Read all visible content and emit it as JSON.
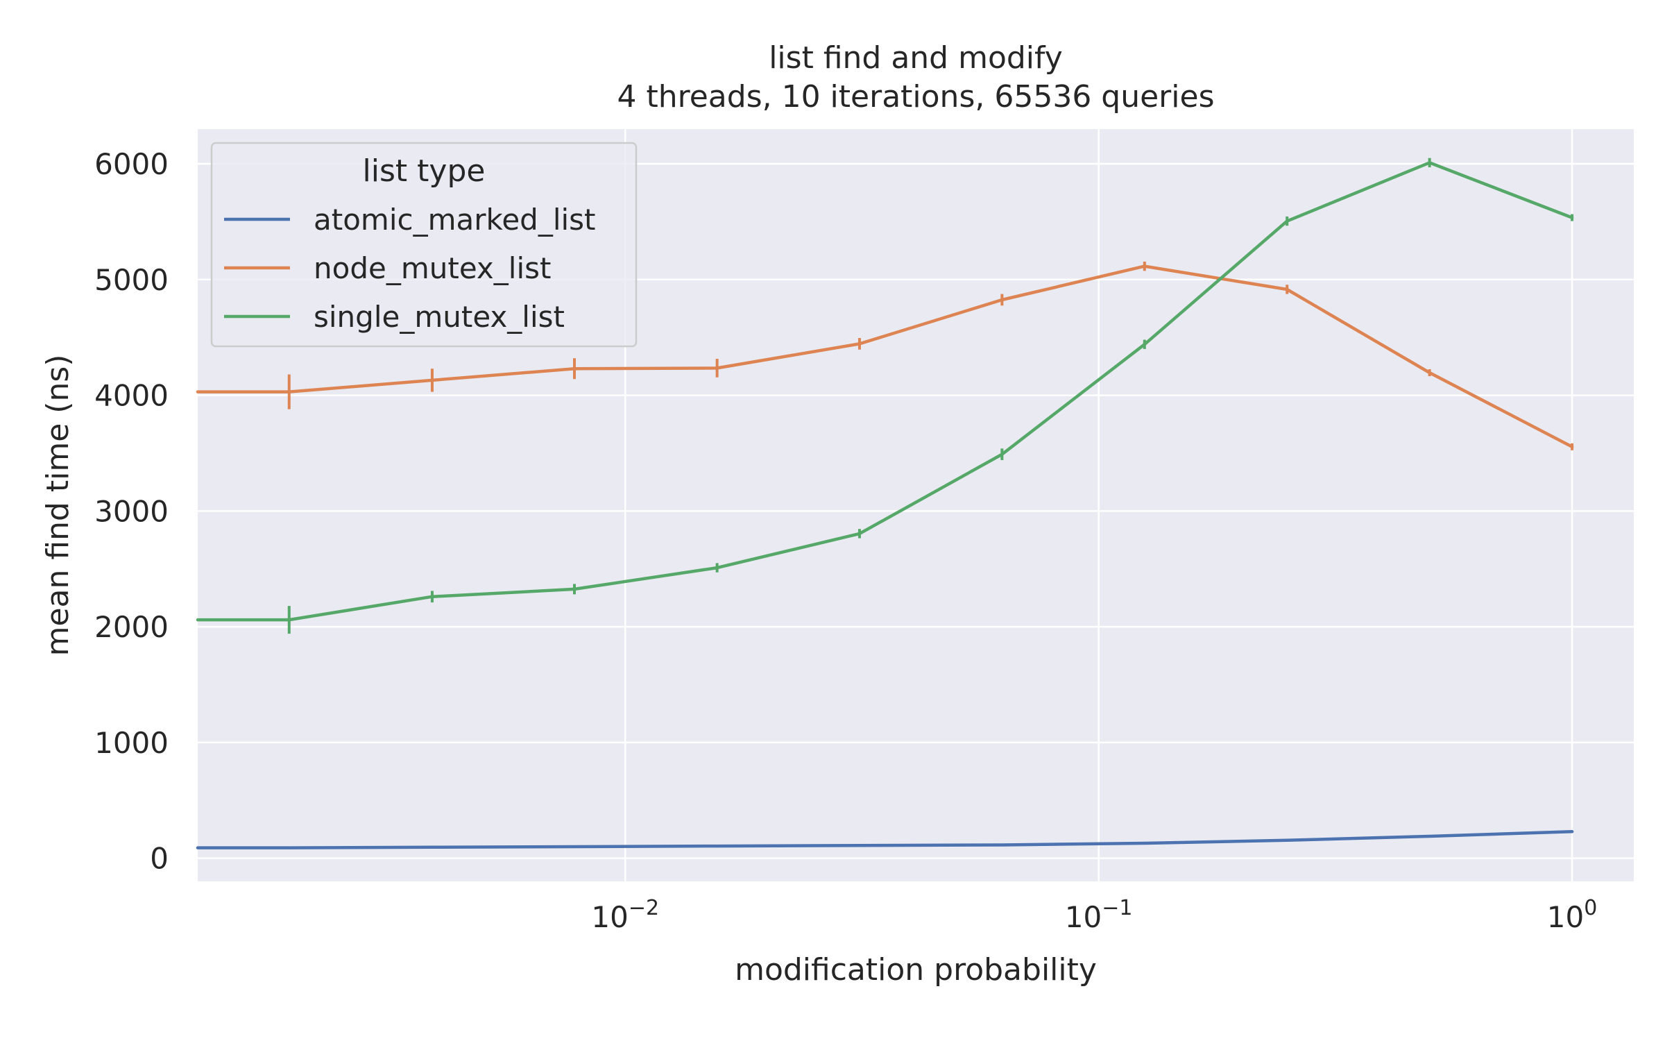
{
  "chart_data": {
    "type": "line",
    "title": "list find and modify",
    "subtitle": "4 threads, 10 iterations, 65536 queries",
    "xlabel": "modification probability",
    "ylabel": "mean find time (ns)",
    "x_scale": "log",
    "xlim": [
      0.00125,
      1.35
    ],
    "ylim": [
      -200,
      6300
    ],
    "grid": true,
    "x_ticks": [
      {
        "value": 0.01,
        "base": "10",
        "exp": "−2"
      },
      {
        "value": 0.1,
        "base": "10",
        "exp": "−1"
      },
      {
        "value": 1,
        "base": "10",
        "exp": "0"
      }
    ],
    "y_ticks": [
      0,
      1000,
      2000,
      3000,
      4000,
      5000,
      6000
    ],
    "legend": {
      "title": "list type",
      "position": "top-left"
    },
    "series": [
      {
        "name": "atomic_marked_list",
        "color": "#4c72b0",
        "x": [
          0.00098,
          0.00195,
          0.00391,
          0.00781,
          0.01563,
          0.03125,
          0.0625,
          0.125,
          0.25,
          0.5,
          1
        ],
        "y": [
          90,
          90,
          95,
          100,
          105,
          110,
          115,
          130,
          155,
          190,
          230
        ],
        "err": [
          5,
          5,
          5,
          5,
          5,
          5,
          5,
          5,
          5,
          5,
          5
        ]
      },
      {
        "name": "node_mutex_list",
        "color": "#dd8452",
        "x": [
          0.00098,
          0.00195,
          0.00391,
          0.00781,
          0.01563,
          0.03125,
          0.0625,
          0.125,
          0.25,
          0.5,
          1
        ],
        "y": [
          4030,
          4030,
          4130,
          4230,
          4235,
          4445,
          4825,
          5115,
          4915,
          4195,
          3555
        ],
        "err": [
          140,
          150,
          100,
          90,
          80,
          50,
          50,
          40,
          40,
          30,
          30
        ]
      },
      {
        "name": "single_mutex_list",
        "color": "#55a868",
        "x": [
          0.00098,
          0.00195,
          0.00391,
          0.00781,
          0.01563,
          0.03125,
          0.0625,
          0.125,
          0.25,
          0.5,
          1
        ],
        "y": [
          2060,
          2060,
          2260,
          2325,
          2510,
          2805,
          3490,
          4440,
          5505,
          6010,
          5535
        ],
        "err": [
          120,
          120,
          50,
          45,
          40,
          40,
          50,
          40,
          40,
          40,
          30
        ]
      }
    ]
  }
}
